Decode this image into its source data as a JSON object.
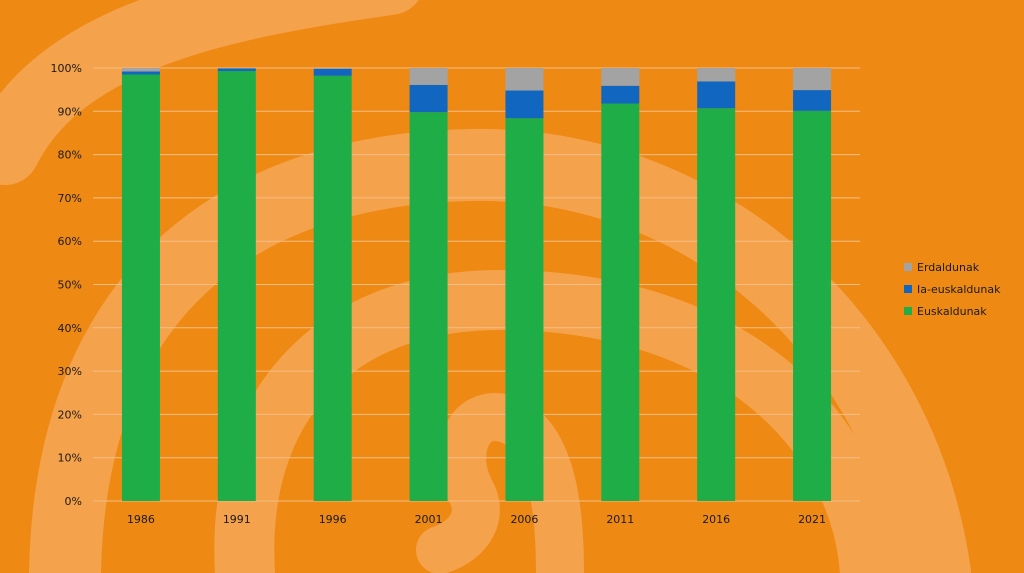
{
  "chart_data": {
    "type": "bar",
    "stacked": true,
    "normalized": true,
    "categories": [
      "1986",
      "1991",
      "1996",
      "2001",
      "2006",
      "2011",
      "2016",
      "2021"
    ],
    "series": [
      {
        "name": "Euskaldunak",
        "color": "#1FAD48",
        "values": [
          98.5,
          99.3,
          98.2,
          89.8,
          88.4,
          91.8,
          90.7,
          90.1
        ]
      },
      {
        "name": "Ia-euskaldunak",
        "color": "#1167C0",
        "values": [
          0.7,
          0.6,
          1.6,
          6.3,
          6.4,
          4.1,
          6.2,
          4.8
        ]
      },
      {
        "name": "Erdaldunak",
        "color": "#A3A3A3",
        "values": [
          0.8,
          0.1,
          0.2,
          3.9,
          5.2,
          4.1,
          3.1,
          5.1
        ]
      }
    ],
    "ylim": [
      0,
      100
    ],
    "yticks": [
      0,
      10,
      20,
      30,
      40,
      50,
      60,
      70,
      80,
      90,
      100
    ],
    "ytick_format": "{v}%",
    "grid": true,
    "legend_position": "right",
    "legend_order": [
      "Erdaldunak",
      "Ia-euskaldunak",
      "Euskaldunak"
    ],
    "title": "",
    "xlabel": "",
    "ylabel": ""
  },
  "background": {
    "base_color": "#EE8A14",
    "swirl_color": "#F4A24C"
  }
}
